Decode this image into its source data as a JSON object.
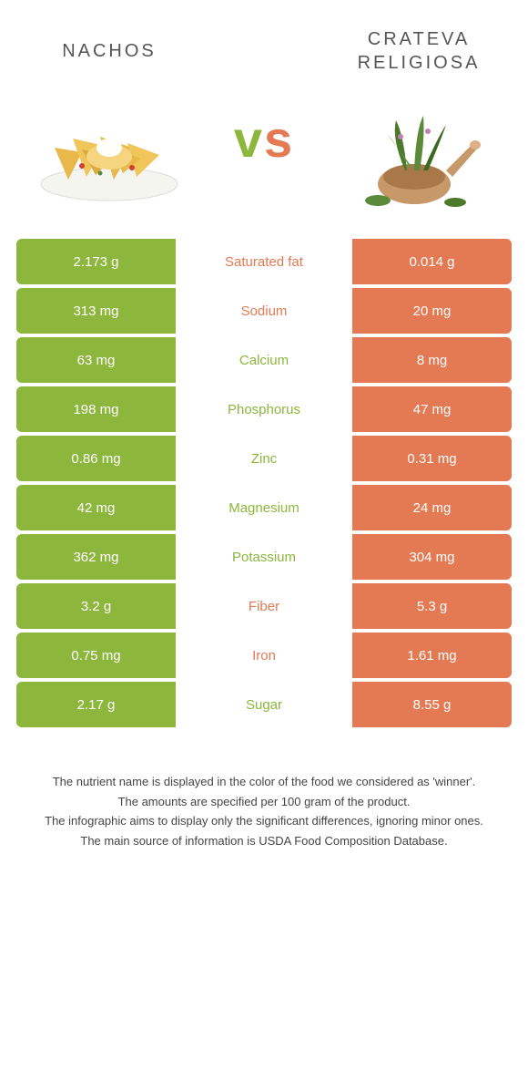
{
  "colors": {
    "left": "#8cb63c",
    "right": "#e47a53",
    "mid_left": "#8cb63c",
    "mid_right": "#e47a53"
  },
  "food_left": {
    "title": "Nachos"
  },
  "food_right": {
    "title": "Crateva religiosa"
  },
  "vs": "vs",
  "rows": [
    {
      "left": "2.173 g",
      "label": "Saturated fat",
      "right": "0.014 g",
      "winner": "right"
    },
    {
      "left": "313 mg",
      "label": "Sodium",
      "right": "20 mg",
      "winner": "right"
    },
    {
      "left": "63 mg",
      "label": "Calcium",
      "right": "8 mg",
      "winner": "left"
    },
    {
      "left": "198 mg",
      "label": "Phosphorus",
      "right": "47 mg",
      "winner": "left"
    },
    {
      "left": "0.86 mg",
      "label": "Zinc",
      "right": "0.31 mg",
      "winner": "left"
    },
    {
      "left": "42 mg",
      "label": "Magnesium",
      "right": "24 mg",
      "winner": "left"
    },
    {
      "left": "362 mg",
      "label": "Potassium",
      "right": "304 mg",
      "winner": "left"
    },
    {
      "left": "3.2 g",
      "label": "Fiber",
      "right": "5.3 g",
      "winner": "right"
    },
    {
      "left": "0.75 mg",
      "label": "Iron",
      "right": "1.61 mg",
      "winner": "right"
    },
    {
      "left": "2.17 g",
      "label": "Sugar",
      "right": "8.55 g",
      "winner": "left"
    }
  ],
  "footer": [
    "The nutrient name is displayed in the color of the food we considered as 'winner'.",
    "The amounts are specified per 100 gram of the product.",
    "The infographic aims to display only the significant differences, ignoring minor ones.",
    "The main source of information is USDA Food Composition Database."
  ]
}
